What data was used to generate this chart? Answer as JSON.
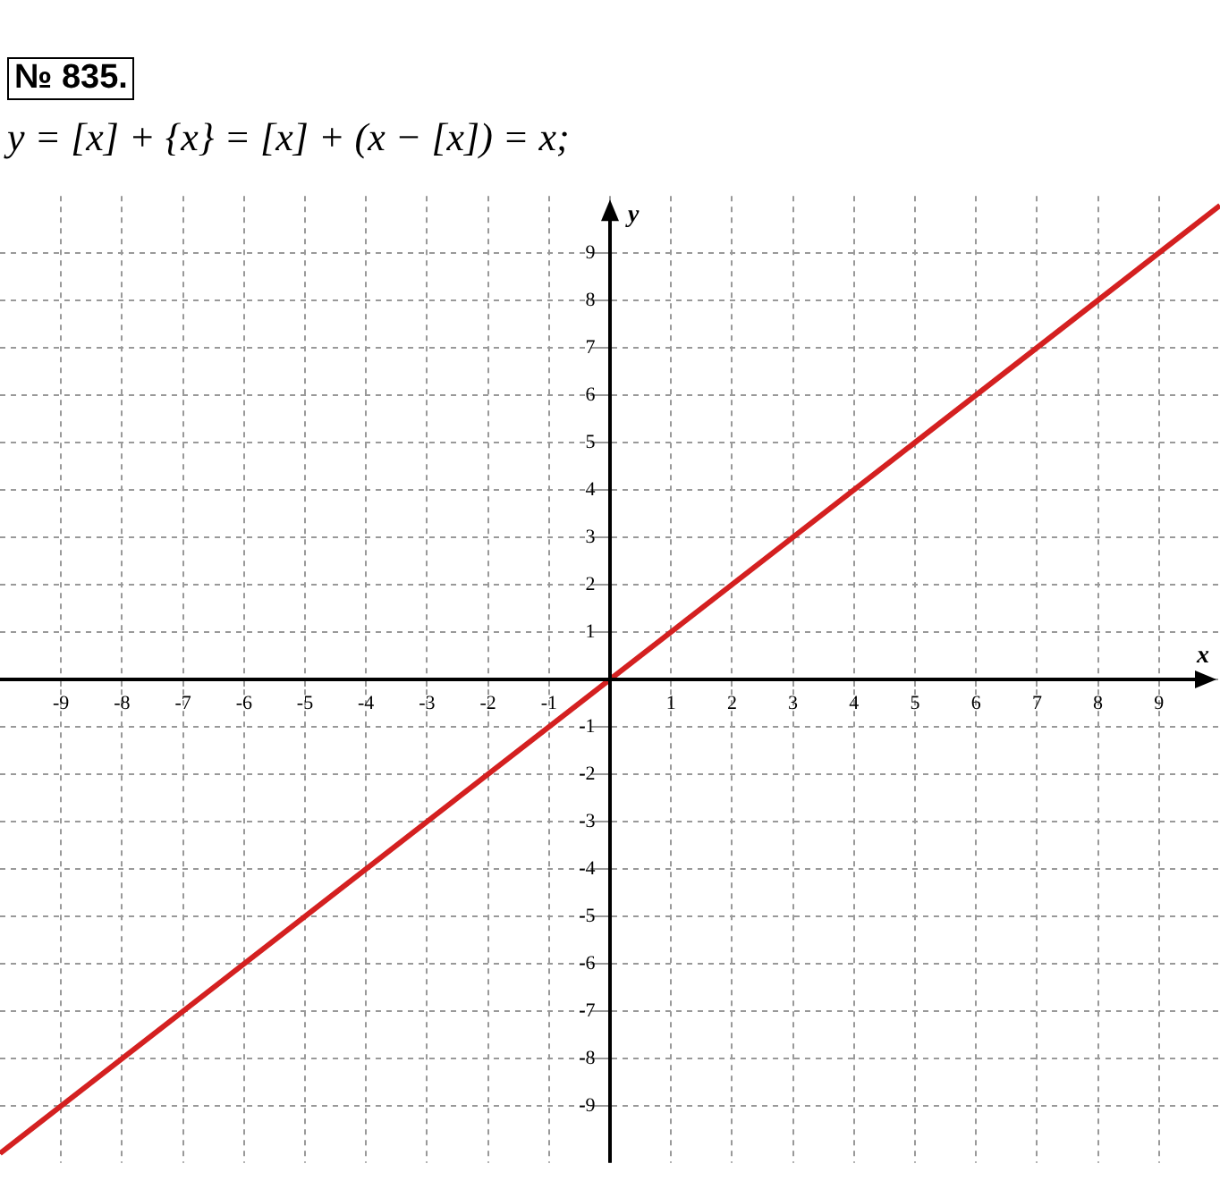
{
  "chart_data": {
    "type": "line",
    "title": "y = [x] + {x} = [x] + (x − [x]) = x;",
    "annotations": [
      "№ 835."
    ],
    "xlabel": "x",
    "ylabel": "y",
    "x": [
      -10,
      10
    ],
    "series": [
      {
        "color": "#d42020",
        "values": [
          -10,
          10
        ]
      }
    ],
    "xlim": [
      -10,
      10
    ],
    "ylim": [
      -10.2,
      10.2
    ],
    "xticks": [
      -9,
      -8,
      -7,
      -6,
      -5,
      -4,
      -3,
      -2,
      -1,
      {
        "value": 0,
        "label": null
      },
      1,
      2,
      3,
      4,
      5,
      6,
      7,
      8,
      9
    ],
    "yticks": [
      -9,
      -8,
      -7,
      -6,
      -5,
      -4,
      -3,
      -2,
      -1,
      {
        "value": 0,
        "label": null
      },
      1,
      2,
      3,
      4,
      5,
      6,
      7,
      8,
      9
    ],
    "grid": true,
    "legend": false,
    "marker": "none",
    "line_style": "solid"
  }
}
